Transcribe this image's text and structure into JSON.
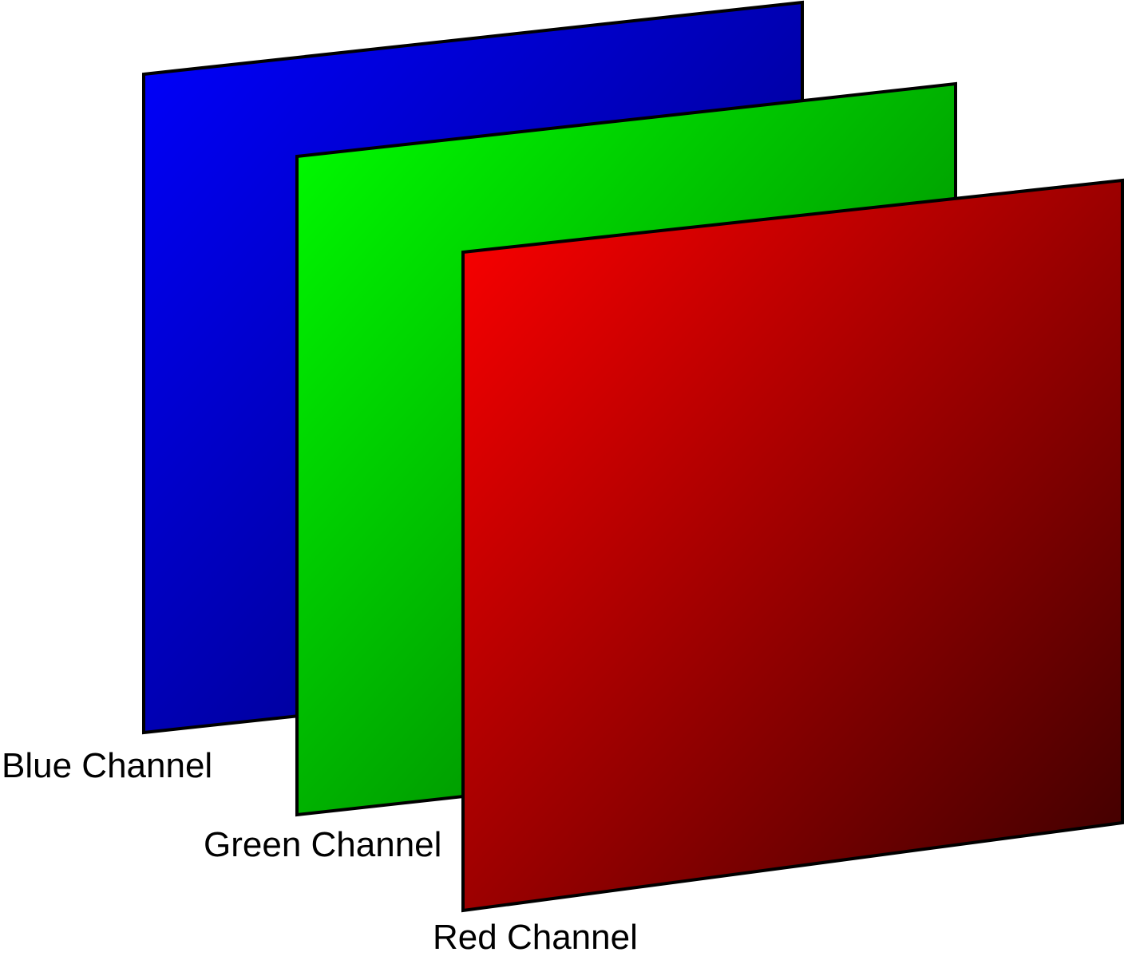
{
  "diagram": {
    "channels": [
      {
        "key": "blue",
        "label": "Blue Channel",
        "gradient_start": "#0000ff",
        "gradient_end": "#000066"
      },
      {
        "key": "green",
        "label": "Green Channel",
        "gradient_start": "#00ff00",
        "gradient_end": "#006400"
      },
      {
        "key": "red",
        "label": "Red Channel",
        "gradient_start": "#ff0000",
        "gradient_end": "#3a0000"
      }
    ],
    "border_color": "#000000",
    "background_color": "#ffffff"
  }
}
